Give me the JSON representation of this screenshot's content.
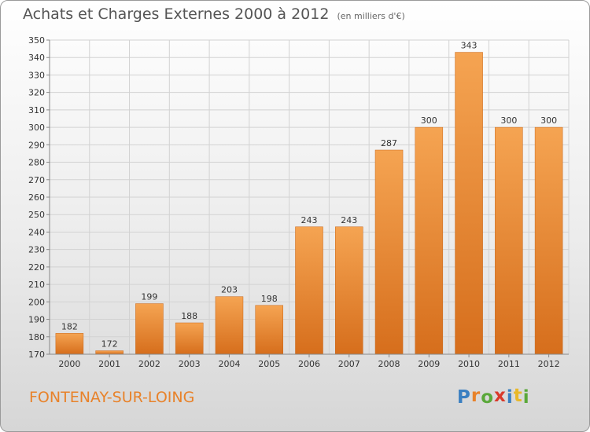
{
  "title": "Achats et Charges Externes 2000 à 2012",
  "subtitle": "(en milliers d'€)",
  "place": "FONTENAY-SUR-LOING",
  "logo": {
    "text": "Proxiti",
    "letters": [
      "P",
      "r",
      "o",
      "x",
      "i",
      "t",
      "i"
    ],
    "colors": [
      "#3a7fc1",
      "#e8822a",
      "#5aa83a",
      "#d93a2b",
      "#3a7fc1",
      "#e8b82a",
      "#5aa83a"
    ]
  },
  "chart_data": {
    "type": "bar",
    "categories": [
      "2000",
      "2001",
      "2002",
      "2003",
      "2004",
      "2005",
      "2006",
      "2007",
      "2008",
      "2009",
      "2010",
      "2011",
      "2012"
    ],
    "values": [
      182,
      172,
      199,
      188,
      203,
      198,
      243,
      243,
      287,
      300,
      343,
      300,
      300
    ],
    "value_labels": [
      "182",
      "172",
      "199",
      "188",
      "203",
      "198",
      "243",
      "243",
      "287",
      "300",
      "343",
      "300",
      "300"
    ],
    "ylim": [
      170,
      350
    ],
    "yticks": [
      170,
      180,
      190,
      200,
      210,
      220,
      230,
      240,
      250,
      260,
      270,
      280,
      290,
      300,
      310,
      320,
      330,
      340,
      350
    ],
    "grid": true,
    "bar_color_top": "#f5a452",
    "bar_color_bottom": "#d66e1c"
  }
}
